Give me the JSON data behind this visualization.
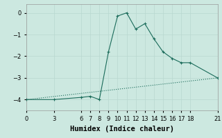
{
  "title": "",
  "xlabel": "Humidex (Indice chaleur)",
  "bg_color": "#cce8e0",
  "line_color": "#1a6b5a",
  "grid_color": "#b8d8d0",
  "line1_x": [
    0,
    3,
    6,
    7,
    8,
    9,
    10,
    11,
    12,
    13,
    14,
    15,
    16,
    17,
    18,
    21
  ],
  "line1_y": [
    -4.0,
    -4.0,
    -3.9,
    -3.85,
    -4.0,
    -1.8,
    -0.15,
    0.0,
    -0.75,
    -0.5,
    -1.2,
    -1.8,
    -2.1,
    -2.3,
    -2.3,
    -3.0
  ],
  "line2_x": [
    0,
    21
  ],
  "line2_y": [
    -4.0,
    -3.0
  ],
  "xlim": [
    0,
    21
  ],
  "ylim": [
    -4.5,
    0.4
  ],
  "xticks": [
    0,
    3,
    6,
    7,
    8,
    9,
    10,
    11,
    12,
    13,
    14,
    15,
    16,
    17,
    18,
    21
  ],
  "yticks": [
    0,
    -1,
    -2,
    -3,
    -4
  ],
  "tick_fontsize": 6,
  "xlabel_fontsize": 7.5,
  "grid_linewidth": 0.5
}
